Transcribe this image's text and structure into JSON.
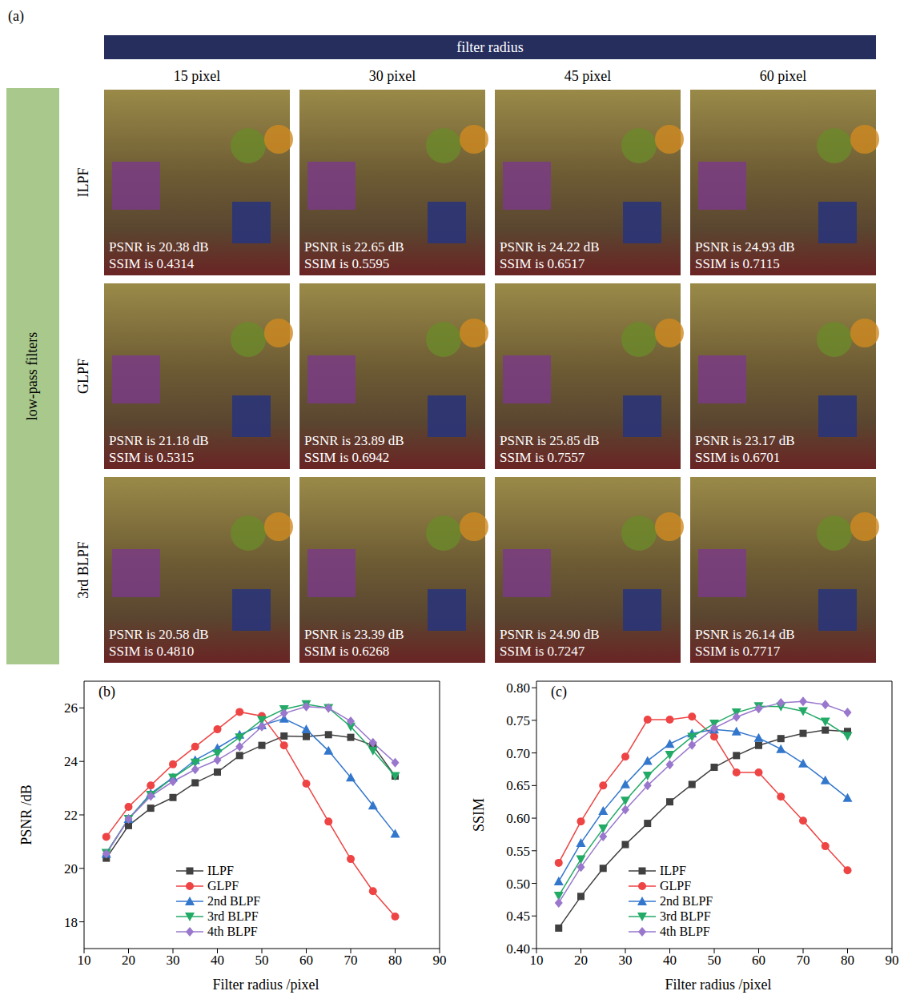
{
  "panel_a": {
    "label": "(a)",
    "header": "filter radius",
    "side_header": "low-pass filters",
    "columns": [
      "15 pixel",
      "30 pixel",
      "45 pixel",
      "60 pixel"
    ],
    "rows": [
      {
        "name": "ILPF",
        "cells": [
          [
            "PSNR is 20.38 dB",
            "SSIM is 0.4314"
          ],
          [
            "PSNR is 22.65 dB",
            "SSIM is 0.5595"
          ],
          [
            "PSNR is 24.22 dB",
            "SSIM is 0.6517"
          ],
          [
            "PSNR is 24.93 dB",
            "SSIM is 0.7115"
          ]
        ]
      },
      {
        "name": "GLPF",
        "cells": [
          [
            "PSNR is 21.18 dB",
            "SSIM is 0.5315"
          ],
          [
            "PSNR is 23.89 dB",
            "SSIM is 0.6942"
          ],
          [
            "PSNR is 25.85 dB",
            "SSIM is 0.7557"
          ],
          [
            "PSNR is 23.17 dB",
            "SSIM is 0.6701"
          ]
        ]
      },
      {
        "name": "3rd BLPF",
        "cells": [
          [
            "PSNR is 20.58 dB",
            "SSIM is 0.4810"
          ],
          [
            "PSNR is 23.39 dB",
            "SSIM is 0.6268"
          ],
          [
            "PSNR is 24.90 dB",
            "SSIM is 0.7247"
          ],
          [
            "PSNR is 26.14 dB",
            "SSIM is 0.7717"
          ]
        ]
      }
    ]
  },
  "chart_data": [
    {
      "type": "line",
      "title": "(b)",
      "x_label": "Filter radius /pixel",
      "y_label": "PSNR /dB",
      "x": [
        15,
        20,
        25,
        30,
        35,
        40,
        45,
        50,
        55,
        60,
        65,
        70,
        75,
        80
      ],
      "series": [
        {
          "name": "ILPF",
          "color": "#404040",
          "marker": "square",
          "values": [
            20.38,
            21.6,
            22.25,
            22.65,
            23.2,
            23.6,
            24.22,
            24.6,
            24.95,
            24.93,
            25.0,
            24.9,
            24.6,
            23.45
          ]
        },
        {
          "name": "GLPF",
          "color": "#ee4444",
          "marker": "circle",
          "values": [
            21.18,
            22.3,
            23.1,
            23.89,
            24.55,
            25.2,
            25.85,
            25.7,
            24.6,
            23.17,
            21.75,
            20.35,
            19.15,
            18.2
          ]
        },
        {
          "name": "2nd BLPF",
          "color": "#3377cc",
          "marker": "triangle",
          "values": [
            20.55,
            21.85,
            22.8,
            23.4,
            24.05,
            24.5,
            25.0,
            25.35,
            25.6,
            25.2,
            24.4,
            23.4,
            22.35,
            21.3
          ]
        },
        {
          "name": "3rd BLPF",
          "color": "#22aa66",
          "marker": "triangle-down",
          "values": [
            20.58,
            21.85,
            22.75,
            23.39,
            23.95,
            24.3,
            24.9,
            25.55,
            25.95,
            26.14,
            26.0,
            25.3,
            24.4,
            23.45
          ]
        },
        {
          "name": "4th BLPF",
          "color": "#9977cc",
          "marker": "diamond",
          "values": [
            20.55,
            21.85,
            22.7,
            23.25,
            23.7,
            24.05,
            24.55,
            25.3,
            25.8,
            26.05,
            26.0,
            25.5,
            24.7,
            23.95
          ]
        }
      ],
      "xlim": [
        10,
        90
      ],
      "xticks": [
        10,
        20,
        30,
        40,
        50,
        60,
        70,
        80,
        90
      ],
      "ylim": [
        17,
        27
      ],
      "yticks": [
        18,
        20,
        22,
        24,
        26
      ],
      "grid": false,
      "legend": "lower left"
    },
    {
      "type": "line",
      "title": "(c)",
      "x_label": "Filter radius /pixel",
      "y_label": "SSIM",
      "x": [
        15,
        20,
        25,
        30,
        35,
        40,
        45,
        50,
        55,
        60,
        65,
        70,
        75,
        80
      ],
      "series": [
        {
          "name": "ILPF",
          "color": "#404040",
          "marker": "square",
          "values": [
            0.4314,
            0.48,
            0.523,
            0.5595,
            0.592,
            0.625,
            0.6517,
            0.678,
            0.696,
            0.7115,
            0.722,
            0.73,
            0.735,
            0.733
          ]
        },
        {
          "name": "GLPF",
          "color": "#ee4444",
          "marker": "circle",
          "values": [
            0.5315,
            0.595,
            0.65,
            0.6942,
            0.751,
            0.751,
            0.7557,
            0.725,
            0.67,
            0.6701,
            0.633,
            0.596,
            0.557,
            0.52
          ]
        },
        {
          "name": "2nd BLPF",
          "color": "#3377cc",
          "marker": "triangle",
          "values": [
            0.503,
            0.562,
            0.611,
            0.652,
            0.688,
            0.714,
            0.73,
            0.736,
            0.733,
            0.723,
            0.706,
            0.684,
            0.658,
            0.631
          ]
        },
        {
          "name": "3rd BLPF",
          "color": "#22aa66",
          "marker": "triangle-down",
          "values": [
            0.481,
            0.537,
            0.584,
            0.6268,
            0.665,
            0.697,
            0.7247,
            0.745,
            0.762,
            0.7717,
            0.771,
            0.764,
            0.748,
            0.726
          ]
        },
        {
          "name": "4th BLPF",
          "color": "#9977cc",
          "marker": "diamond",
          "values": [
            0.47,
            0.525,
            0.572,
            0.613,
            0.65,
            0.682,
            0.712,
            0.738,
            0.755,
            0.768,
            0.777,
            0.779,
            0.774,
            0.762
          ]
        }
      ],
      "xlim": [
        10,
        90
      ],
      "xticks": [
        10,
        20,
        30,
        40,
        50,
        60,
        70,
        80,
        90
      ],
      "ylim": [
        0.4,
        0.81
      ],
      "yticks": [
        {
          "value": 0.4,
          "label": "0.40"
        },
        0.45,
        {
          "value": 0.5,
          "label": "0.50"
        },
        0.55,
        {
          "value": 0.6,
          "label": "0.60"
        },
        0.65,
        {
          "value": 0.7,
          "label": "0.70"
        },
        0.75,
        {
          "value": 0.8,
          "label": "0.80"
        }
      ],
      "grid": false,
      "legend": "lower left"
    }
  ]
}
